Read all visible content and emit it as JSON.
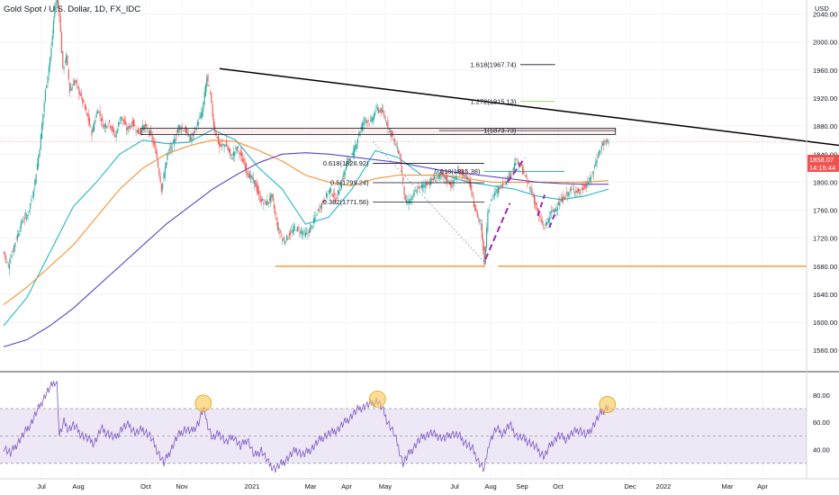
{
  "header": {
    "symbol_title": "Gold Spot / U.S. Dollar, 1D, FX_IDC",
    "currency": "USD"
  },
  "price_badge": {
    "price": "1858.07",
    "countdown": "14:15:44",
    "color": "#ef5350"
  },
  "colors": {
    "up": "#26a69a",
    "down": "#ef5350",
    "ma_fast": "#26b6c8",
    "ma_mid": "#f5922f",
    "ma_slow": "#5b43c9",
    "rsi_line": "#7e57c2",
    "rsi_band": "#ede7f6",
    "highlight": "#f9c74f",
    "dashed_projection": "#9c27b0",
    "support_line": "#f5922f",
    "trendline": "#000000"
  },
  "chart_data": {
    "type": "candlestick",
    "title": "Gold Spot / U.S. Dollar, 1D, FX_IDC",
    "price_axis": {
      "ticks": [
        1560,
        1600,
        1640,
        1680,
        1720,
        1760,
        1800,
        1840,
        1880,
        1920,
        1960,
        2000,
        2040
      ],
      "tick_labels": [
        "1560.00",
        "1600.00",
        "1640.00",
        "1680.00",
        "1720.00",
        "1760.00",
        "1800.00",
        "1840.00",
        "1880.00",
        "1920.00",
        "1960.00",
        "2000.00",
        "2040.00"
      ],
      "range": [
        1532,
        2060
      ]
    },
    "time_axis": {
      "labels": [
        "Jul",
        "Aug",
        "Oct",
        "Nov",
        "2021",
        "Mar",
        "Apr",
        "May",
        "Jul",
        "Aug",
        "Sep",
        "Oct",
        "Dec",
        "2022",
        "Mar",
        "Apr"
      ]
    },
    "price_path": [
      [
        0,
        1700
      ],
      [
        4,
        1680
      ],
      [
        10,
        1715
      ],
      [
        16,
        1745
      ],
      [
        21,
        1755
      ],
      [
        26,
        1790
      ],
      [
        31,
        1850
      ],
      [
        36,
        1930
      ],
      [
        41,
        1990
      ],
      [
        44,
        2050
      ],
      [
        46,
        2063
      ],
      [
        48,
        2040
      ],
      [
        51,
        1960
      ],
      [
        54,
        1980
      ],
      [
        57,
        1930
      ],
      [
        61,
        1945
      ],
      [
        66,
        1925
      ],
      [
        71,
        1900
      ],
      [
        76,
        1870
      ],
      [
        81,
        1905
      ],
      [
        86,
        1880
      ],
      [
        91,
        1885
      ],
      [
        96,
        1865
      ],
      [
        101,
        1895
      ],
      [
        106,
        1875
      ],
      [
        111,
        1885
      ],
      [
        116,
        1870
      ],
      [
        121,
        1880
      ],
      [
        126,
        1870
      ],
      [
        131,
        1845
      ],
      [
        136,
        1790
      ],
      [
        141,
        1840
      ],
      [
        146,
        1855
      ],
      [
        151,
        1880
      ],
      [
        156,
        1875
      ],
      [
        161,
        1860
      ],
      [
        166,
        1880
      ],
      [
        171,
        1900
      ],
      [
        175,
        1950
      ],
      [
        178,
        1925
      ],
      [
        181,
        1880
      ],
      [
        186,
        1850
      ],
      [
        191,
        1855
      ],
      [
        196,
        1835
      ],
      [
        201,
        1850
      ],
      [
        206,
        1830
      ],
      [
        211,
        1810
      ],
      [
        216,
        1800
      ],
      [
        221,
        1775
      ],
      [
        226,
        1770
      ],
      [
        231,
        1780
      ],
      [
        236,
        1735
      ],
      [
        241,
        1715
      ],
      [
        246,
        1725
      ],
      [
        251,
        1735
      ],
      [
        256,
        1730
      ],
      [
        261,
        1725
      ],
      [
        266,
        1740
      ],
      [
        271,
        1760
      ],
      [
        276,
        1775
      ],
      [
        281,
        1790
      ],
      [
        286,
        1775
      ],
      [
        291,
        1800
      ],
      [
        296,
        1830
      ],
      [
        301,
        1840
      ],
      [
        306,
        1870
      ],
      [
        311,
        1890
      ],
      [
        316,
        1885
      ],
      [
        321,
        1905
      ],
      [
        326,
        1900
      ],
      [
        331,
        1880
      ],
      [
        336,
        1860
      ],
      [
        341,
        1840
      ],
      [
        346,
        1770
      ],
      [
        351,
        1775
      ],
      [
        356,
        1790
      ],
      [
        361,
        1795
      ],
      [
        366,
        1800
      ],
      [
        371,
        1805
      ],
      [
        376,
        1810
      ],
      [
        381,
        1805
      ],
      [
        386,
        1795
      ],
      [
        391,
        1815
      ],
      [
        396,
        1812
      ],
      [
        401,
        1800
      ],
      [
        406,
        1760
      ],
      [
        411,
        1740
      ],
      [
        414,
        1685
      ],
      [
        417,
        1760
      ],
      [
        421,
        1780
      ],
      [
        426,
        1790
      ],
      [
        431,
        1800
      ],
      [
        436,
        1810
      ],
      [
        441,
        1830
      ],
      [
        446,
        1820
      ],
      [
        451,
        1800
      ],
      [
        456,
        1780
      ],
      [
        461,
        1750
      ],
      [
        466,
        1735
      ],
      [
        471,
        1755
      ],
      [
        476,
        1765
      ],
      [
        481,
        1775
      ],
      [
        486,
        1785
      ],
      [
        491,
        1790
      ],
      [
        496,
        1785
      ],
      [
        501,
        1795
      ],
      [
        506,
        1805
      ],
      [
        511,
        1835
      ],
      [
        516,
        1855
      ],
      [
        521,
        1858
      ]
    ],
    "moving_averages": [
      {
        "values": [
          [
            0,
            1595
          ],
          [
            20,
            1635
          ],
          [
            40,
            1700
          ],
          [
            60,
            1765
          ],
          [
            80,
            1800
          ],
          [
            100,
            1840
          ],
          [
            120,
            1860
          ],
          [
            140,
            1855
          ],
          [
            160,
            1857
          ],
          [
            180,
            1875
          ],
          [
            200,
            1860
          ],
          [
            220,
            1820
          ],
          [
            240,
            1790
          ],
          [
            260,
            1740
          ],
          [
            280,
            1750
          ],
          [
            300,
            1790
          ],
          [
            320,
            1845
          ],
          [
            340,
            1835
          ],
          [
            360,
            1810
          ],
          [
            380,
            1810
          ],
          [
            400,
            1800
          ],
          [
            420,
            1795
          ],
          [
            440,
            1790
          ],
          [
            460,
            1780
          ],
          [
            480,
            1775
          ],
          [
            500,
            1780
          ],
          [
            521,
            1790
          ]
        ]
      },
      {
        "values": [
          [
            0,
            1625
          ],
          [
            20,
            1650
          ],
          [
            40,
            1680
          ],
          [
            60,
            1710
          ],
          [
            80,
            1750
          ],
          [
            100,
            1790
          ],
          [
            120,
            1820
          ],
          [
            140,
            1840
          ],
          [
            160,
            1852
          ],
          [
            180,
            1860
          ],
          [
            200,
            1858
          ],
          [
            220,
            1845
          ],
          [
            240,
            1830
          ],
          [
            260,
            1810
          ],
          [
            280,
            1800
          ],
          [
            300,
            1795
          ],
          [
            320,
            1805
          ],
          [
            340,
            1810
          ],
          [
            360,
            1810
          ],
          [
            380,
            1810
          ],
          [
            400,
            1805
          ],
          [
            420,
            1800
          ],
          [
            440,
            1800
          ],
          [
            460,
            1800
          ],
          [
            480,
            1800
          ],
          [
            500,
            1800
          ],
          [
            521,
            1802
          ]
        ]
      },
      {
        "values": [
          [
            0,
            1565
          ],
          [
            20,
            1575
          ],
          [
            40,
            1595
          ],
          [
            60,
            1620
          ],
          [
            80,
            1650
          ],
          [
            100,
            1680
          ],
          [
            120,
            1710
          ],
          [
            140,
            1740
          ],
          [
            160,
            1765
          ],
          [
            180,
            1790
          ],
          [
            200,
            1810
          ],
          [
            220,
            1828
          ],
          [
            240,
            1840
          ],
          [
            260,
            1842
          ],
          [
            280,
            1840
          ],
          [
            300,
            1836
          ],
          [
            320,
            1832
          ],
          [
            340,
            1828
          ],
          [
            360,
            1822
          ],
          [
            380,
            1816
          ],
          [
            400,
            1812
          ],
          [
            420,
            1808
          ],
          [
            440,
            1804
          ],
          [
            460,
            1800
          ],
          [
            480,
            1798
          ],
          [
            500,
            1797
          ],
          [
            521,
            1797
          ]
        ]
      }
    ],
    "rsi": {
      "levels": [
        30,
        50,
        70
      ],
      "tick_labels": [
        "40.00",
        "60.00",
        "80.00"
      ],
      "ticks": [
        40,
        60,
        80
      ],
      "range": [
        20,
        95
      ],
      "values": [
        [
          0,
          42
        ],
        [
          6,
          37
        ],
        [
          12,
          45
        ],
        [
          18,
          52
        ],
        [
          24,
          60
        ],
        [
          30,
          70
        ],
        [
          36,
          80
        ],
        [
          40,
          85
        ],
        [
          44,
          90
        ],
        [
          46,
          88
        ],
        [
          48,
          50
        ],
        [
          52,
          60
        ],
        [
          56,
          55
        ],
        [
          60,
          58
        ],
        [
          66,
          52
        ],
        [
          72,
          48
        ],
        [
          78,
          45
        ],
        [
          84,
          55
        ],
        [
          90,
          52
        ],
        [
          96,
          48
        ],
        [
          102,
          56
        ],
        [
          108,
          58
        ],
        [
          114,
          52
        ],
        [
          120,
          55
        ],
        [
          126,
          50
        ],
        [
          132,
          40
        ],
        [
          138,
          30
        ],
        [
          144,
          40
        ],
        [
          150,
          50
        ],
        [
          156,
          55
        ],
        [
          162,
          53
        ],
        [
          168,
          60
        ],
        [
          172,
          70
        ],
        [
          176,
          58
        ],
        [
          180,
          48
        ],
        [
          186,
          52
        ],
        [
          192,
          45
        ],
        [
          198,
          50
        ],
        [
          204,
          42
        ],
        [
          210,
          48
        ],
        [
          216,
          35
        ],
        [
          222,
          40
        ],
        [
          228,
          30
        ],
        [
          234,
          26
        ],
        [
          240,
          30
        ],
        [
          246,
          35
        ],
        [
          252,
          40
        ],
        [
          258,
          36
        ],
        [
          264,
          40
        ],
        [
          270,
          45
        ],
        [
          276,
          50
        ],
        [
          282,
          52
        ],
        [
          288,
          55
        ],
        [
          294,
          60
        ],
        [
          300,
          65
        ],
        [
          306,
          70
        ],
        [
          312,
          72
        ],
        [
          318,
          74
        ],
        [
          322,
          76
        ],
        [
          326,
          70
        ],
        [
          330,
          62
        ],
        [
          336,
          52
        ],
        [
          340,
          42
        ],
        [
          344,
          30
        ],
        [
          350,
          38
        ],
        [
          356,
          45
        ],
        [
          362,
          50
        ],
        [
          368,
          52
        ],
        [
          374,
          50
        ],
        [
          380,
          48
        ],
        [
          386,
          52
        ],
        [
          392,
          50
        ],
        [
          398,
          45
        ],
        [
          404,
          40
        ],
        [
          410,
          30
        ],
        [
          414,
          25
        ],
        [
          418,
          45
        ],
        [
          424,
          55
        ],
        [
          430,
          52
        ],
        [
          436,
          58
        ],
        [
          442,
          50
        ],
        [
          448,
          48
        ],
        [
          454,
          45
        ],
        [
          460,
          40
        ],
        [
          466,
          35
        ],
        [
          472,
          45
        ],
        [
          478,
          50
        ],
        [
          484,
          48
        ],
        [
          490,
          52
        ],
        [
          496,
          55
        ],
        [
          502,
          50
        ],
        [
          508,
          58
        ],
        [
          514,
          66
        ],
        [
          518,
          70
        ],
        [
          521,
          72
        ]
      ]
    },
    "annotations": {
      "fib_levels": [
        {
          "label": "1.618(1967.74)",
          "price": 1967.74
        },
        {
          "label": "1.272(1915.13)",
          "price": 1915.13
        },
        {
          "label": "1(1873.73)",
          "price": 1873.73
        },
        {
          "label": "0.618(1826.92)",
          "price": 1826.92
        },
        {
          "label": "0.618(1815.38)",
          "price": 1815.38
        },
        {
          "label": "0.5(1799.24)",
          "price": 1799.24
        },
        {
          "label": "0.382(1771.56)",
          "price": 1771.56
        }
      ],
      "resistance_zone": [
        1868,
        1877
      ],
      "support_level": 1680,
      "descending_trendline": [
        [
          186,
          1962
        ],
        [
          1000,
          1795
        ]
      ]
    }
  }
}
